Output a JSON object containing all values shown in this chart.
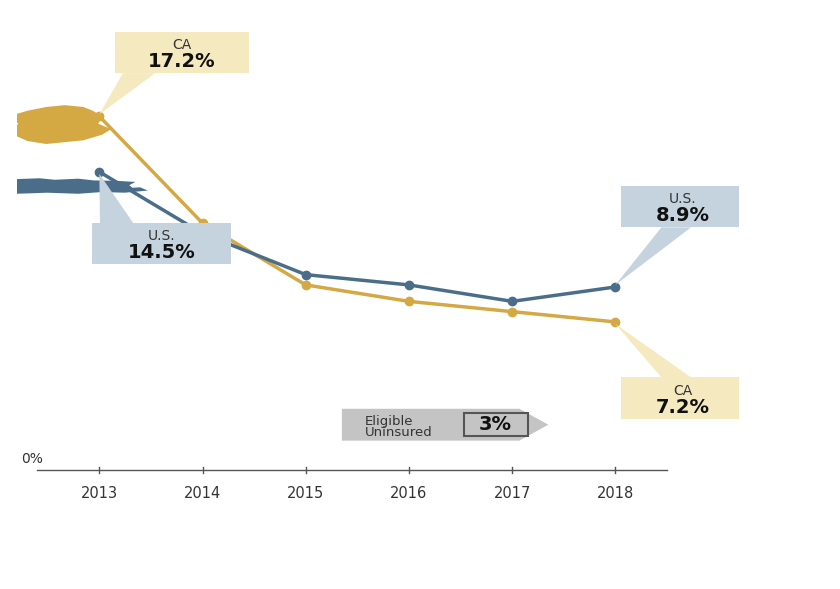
{
  "years": [
    2013,
    2014,
    2015,
    2016,
    2017,
    2018
  ],
  "ca_values": [
    17.2,
    12.0,
    9.0,
    8.2,
    7.7,
    7.2
  ],
  "us_values": [
    14.5,
    11.5,
    9.5,
    9.0,
    8.2,
    8.9
  ],
  "ca_color": "#D4A843",
  "us_color": "#4A6E8A",
  "ca_box_color": "#F5E9C0",
  "us_box_color": "#C5D3DF",
  "eligible_arrow_color": "#C8C8C8",
  "eligible_box_color": "#CCCCCC",
  "bg_color": "#FFFFFF",
  "line_width": 2.5,
  "marker_size": 6,
  "xlim": [
    2012.2,
    2019.2
  ],
  "ylim": [
    -3.5,
    22
  ]
}
